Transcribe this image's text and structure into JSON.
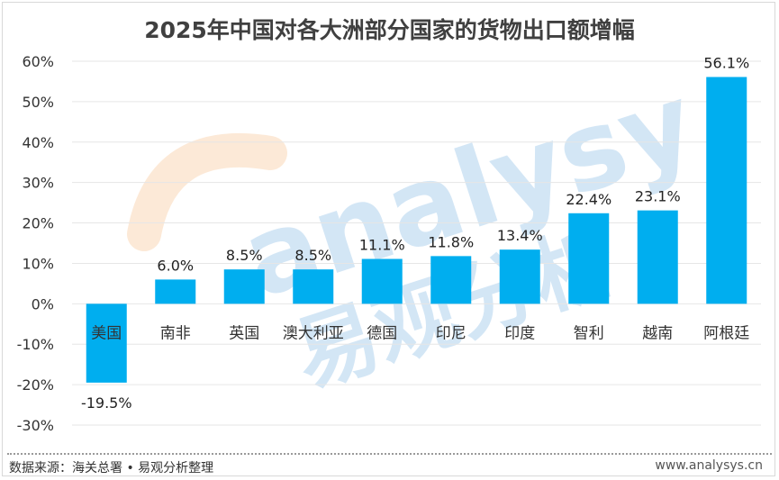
{
  "footer": {
    "source": "数据来源：海关总署 • 易观分析整理",
    "site": "www.analysys.cn"
  },
  "watermark": {
    "text_en": "analysys",
    "text_cn": "易观分析"
  },
  "colors": {
    "bar": "#00aeef",
    "grid": "#e6e6e6",
    "title": "#404040"
  },
  "chart_data": {
    "type": "bar",
    "title": "2025年中国对各大洲部分国家的货物出口额增幅",
    "xlabel": "",
    "ylabel": "",
    "categories": [
      "美国",
      "南非",
      "英国",
      "澳大利亚",
      "德国",
      "印尼",
      "印度",
      "智利",
      "越南",
      "阿根廷"
    ],
    "values": [
      -19.5,
      6.0,
      8.5,
      8.5,
      11.1,
      11.8,
      13.4,
      22.4,
      23.1,
      56.1
    ],
    "data_labels": [
      "-19.5%",
      "6.0%",
      "8.5%",
      "8.5%",
      "11.1%",
      "11.8%",
      "13.4%",
      "22.4%",
      "23.1%",
      "56.1%"
    ],
    "ylim": [
      -30,
      60
    ],
    "yticks": [
      60,
      50,
      40,
      30,
      20,
      10,
      0,
      -10,
      -20,
      -30
    ],
    "ytick_labels": [
      "60%",
      "50%",
      "40%",
      "30%",
      "20%",
      "10%",
      "0%",
      "-10%",
      "-20%",
      "-30%"
    ],
    "grid": true,
    "legend": "none"
  }
}
